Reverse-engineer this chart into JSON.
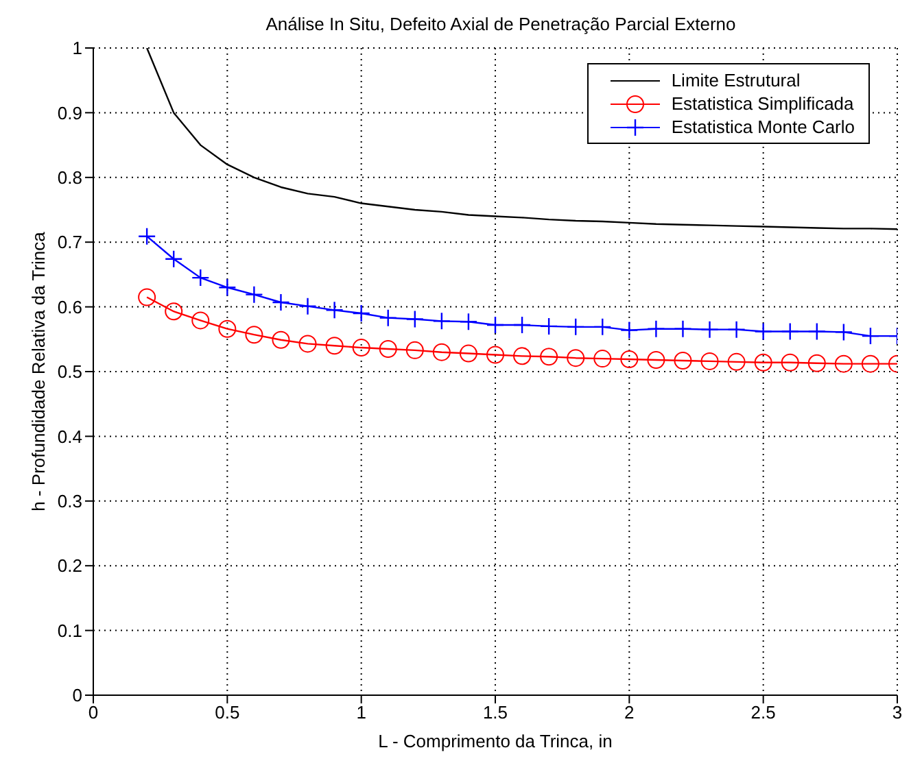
{
  "chart_data": {
    "type": "line",
    "title": "Análise In Situ, Defeito Axial de Penetração Parcial Externo",
    "xlabel": "L - Comprimento da Trinca, in",
    "ylabel": "h - Profundidade Relativa da Trinca",
    "x": [
      0.2,
      0.3,
      0.4,
      0.5,
      0.6,
      0.7,
      0.8,
      0.9,
      1.0,
      1.1,
      1.2,
      1.3,
      1.4,
      1.5,
      1.6,
      1.7,
      1.8,
      1.9,
      2.0,
      2.1,
      2.2,
      2.3,
      2.4,
      2.5,
      2.6,
      2.7,
      2.8,
      2.9,
      3.0
    ],
    "series": [
      {
        "name": "Limite Estrutural",
        "color": "#000000",
        "marker": "none",
        "values": [
          1.0,
          0.9,
          0.85,
          0.82,
          0.8,
          0.785,
          0.775,
          0.77,
          0.76,
          0.755,
          0.75,
          0.747,
          0.742,
          0.74,
          0.738,
          0.735,
          0.733,
          0.732,
          0.73,
          0.728,
          0.727,
          0.726,
          0.725,
          0.724,
          0.723,
          0.722,
          0.721,
          0.721,
          0.72
        ]
      },
      {
        "name": "Estatistica Simplificada",
        "color": "#ff0000",
        "marker": "circle",
        "values": [
          0.615,
          0.593,
          0.579,
          0.566,
          0.557,
          0.549,
          0.543,
          0.54,
          0.537,
          0.535,
          0.533,
          0.53,
          0.528,
          0.526,
          0.524,
          0.523,
          0.521,
          0.52,
          0.519,
          0.518,
          0.517,
          0.516,
          0.515,
          0.514,
          0.514,
          0.513,
          0.512,
          0.512,
          0.512
        ]
      },
      {
        "name": "Estatistica Monte Carlo",
        "color": "#0000ff",
        "marker": "cross",
        "values": [
          0.709,
          0.674,
          0.645,
          0.63,
          0.619,
          0.607,
          0.601,
          0.595,
          0.59,
          0.583,
          0.581,
          0.578,
          0.577,
          0.572,
          0.572,
          0.57,
          0.569,
          0.569,
          0.564,
          0.566,
          0.566,
          0.565,
          0.565,
          0.562,
          0.562,
          0.562,
          0.561,
          0.555,
          0.555
        ]
      }
    ],
    "xlim": [
      0,
      3
    ],
    "xticks": [
      0,
      0.5,
      1,
      1.5,
      2,
      2.5,
      3
    ],
    "ylim": [
      0,
      1
    ],
    "yticks": [
      0,
      0.1,
      0.2,
      0.3,
      0.4,
      0.5,
      0.6,
      0.7,
      0.8,
      0.9,
      1
    ],
    "grid": true,
    "legend": "top right",
    "line_style": "solid"
  }
}
